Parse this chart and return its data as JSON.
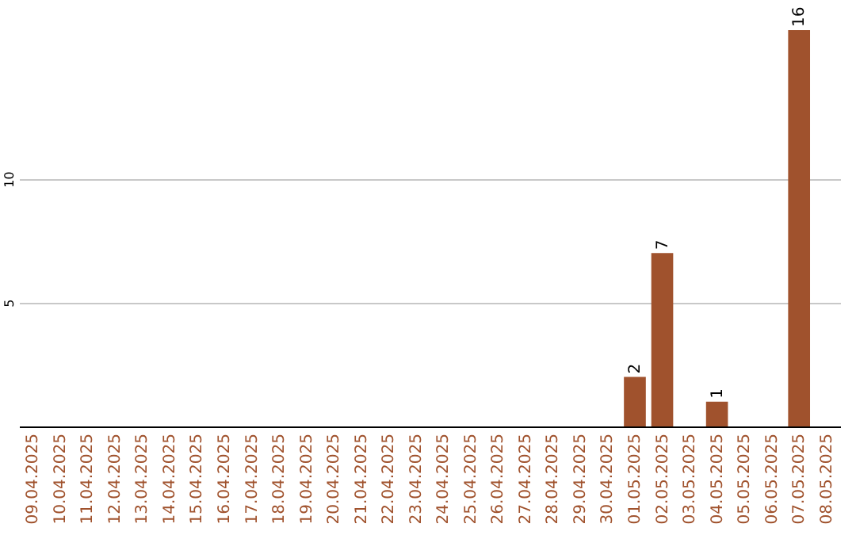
{
  "chart_data": {
    "type": "bar",
    "categories": [
      "09.04.2025",
      "10.04.2025",
      "11.04.2025",
      "12.04.2025",
      "13.04.2025",
      "14.04.2025",
      "15.04.2025",
      "16.04.2025",
      "17.04.2025",
      "18.04.2025",
      "19.04.2025",
      "20.04.2025",
      "21.04.2025",
      "22.04.2025",
      "23.04.2025",
      "24.04.2025",
      "25.04.2025",
      "26.04.2025",
      "27.04.2025",
      "28.04.2025",
      "29.04.2025",
      "30.04.2025",
      "01.05.2025",
      "02.05.2025",
      "03.05.2025",
      "04.05.2025",
      "05.05.2025",
      "06.05.2025",
      "07.05.2025",
      "08.05.2025"
    ],
    "values": [
      0,
      0,
      0,
      0,
      0,
      0,
      0,
      0,
      0,
      0,
      0,
      0,
      0,
      0,
      0,
      0,
      0,
      0,
      0,
      0,
      0,
      0,
      2,
      7,
      0,
      1,
      0,
      0,
      16,
      0
    ],
    "value_labels": [
      null,
      null,
      null,
      null,
      null,
      null,
      null,
      null,
      null,
      null,
      null,
      null,
      null,
      null,
      null,
      null,
      null,
      null,
      null,
      null,
      null,
      null,
      "2",
      "7",
      null,
      "1",
      null,
      null,
      "16",
      null
    ],
    "color": "#a0522d",
    "ylim": [
      0,
      16
    ],
    "yticks": [
      5,
      10
    ],
    "grid": "y"
  }
}
